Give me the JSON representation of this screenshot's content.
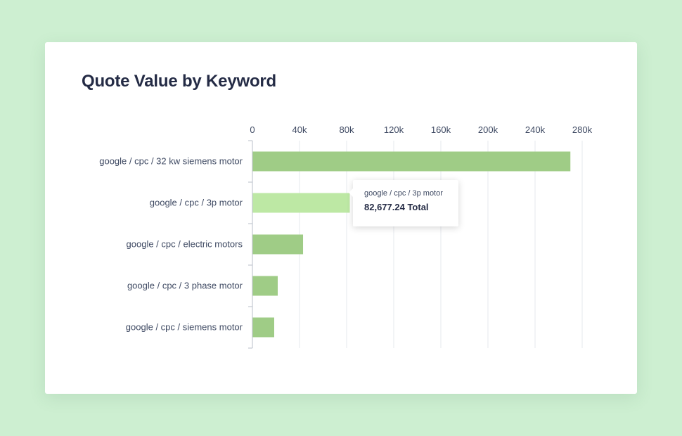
{
  "chart_data": {
    "type": "bar",
    "orientation": "horizontal",
    "title": "Quote Value by Keyword",
    "categories": [
      "google / cpc / 32 kw siemens motor",
      "google / cpc / 3p motor",
      "google / cpc / electric motors",
      "google / cpc / 3 phase motor",
      "google / cpc / siemens motor"
    ],
    "values": [
      270000,
      82677.24,
      43000,
      21500,
      18500
    ],
    "xticks": [
      0,
      40000,
      80000,
      120000,
      160000,
      200000,
      240000,
      280000
    ],
    "xtick_labels": [
      "0",
      "40k",
      "80k",
      "120k",
      "160k",
      "200k",
      "240k",
      "280k"
    ],
    "xlim": [
      0,
      280000
    ],
    "axis_position": "top",
    "grid": true,
    "highlighted_index": 1,
    "colors": {
      "bar": "#9fcc86",
      "bar_highlight": "#bde8a4",
      "grid": "#e6e9ee",
      "axis": "#b9bfca"
    }
  },
  "tooltip": {
    "category": "google / cpc / 3p motor",
    "value_text": "82,677.24 Total"
  }
}
